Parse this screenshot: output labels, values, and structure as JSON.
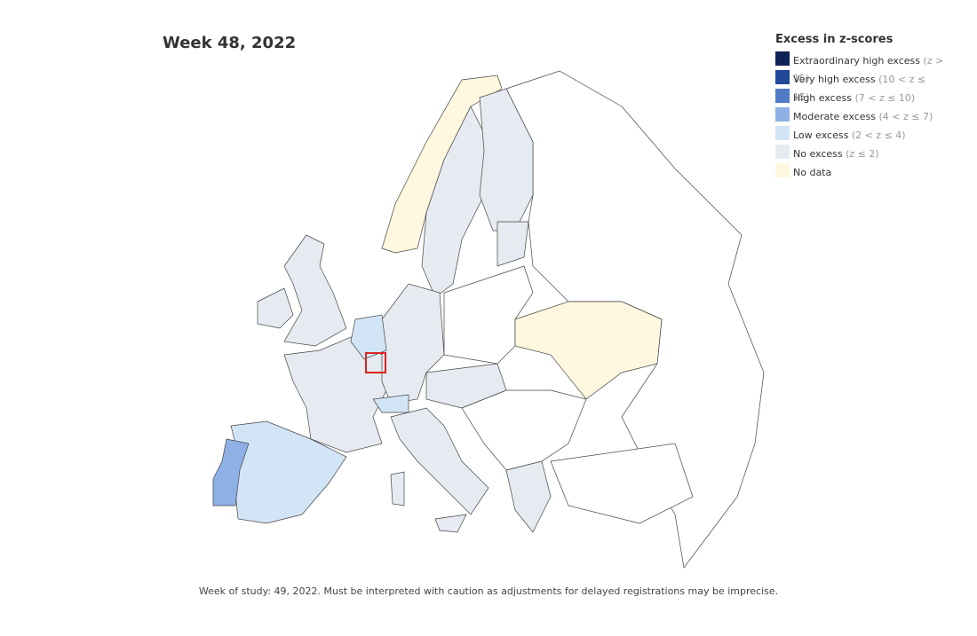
{
  "header": {
    "title": "Week 48, 2022"
  },
  "legend": {
    "title": "Excess in z-scores",
    "items": [
      {
        "label": "Extraordinary high excess",
        "range": "(z > 15)",
        "color": "#0f2255"
      },
      {
        "label": "Very high excess",
        "range": "(10 < z ≤ 15)",
        "color": "#22489a"
      },
      {
        "label": "High excess",
        "range": "(7 < z ≤ 10)",
        "color": "#507bc6"
      },
      {
        "label": "Moderate excess",
        "range": "(4 < z ≤ 7)",
        "color": "#8fb0e5"
      },
      {
        "label": "Low excess",
        "range": "(2 < z ≤ 4)",
        "color": "#d2e5f7"
      },
      {
        "label": "No excess",
        "range": "(z ≤ 2)",
        "color": "#e6ebf1"
      },
      {
        "label": "No data",
        "color": "#fff7df"
      }
    ]
  },
  "footer": {
    "note": "Week of study: 49, 2022. Must be interpreted with caution as adjustments for delayed registrations may be imprecise."
  }
}
